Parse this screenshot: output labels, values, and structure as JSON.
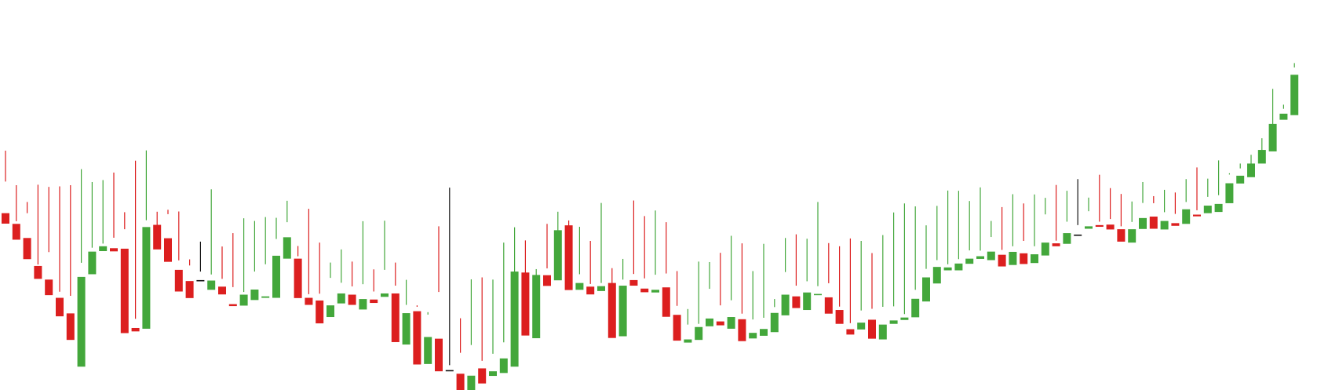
{
  "colors": {
    "up": "#43a73b",
    "down": "#dc1f1f",
    "doji": "#111111",
    "background": "#ffffff"
  },
  "chart_data": {
    "type": "candlestick",
    "title": "",
    "xlabel": "",
    "ylabel": "",
    "axes_visible": false,
    "grid": false,
    "y_range": [
      0,
      100
    ],
    "candles": [
      [
        -8.6,
        -12.9,
        13.0,
        -30.0
      ],
      [
        -13.0,
        -19.5,
        1.1,
        -22.4
      ],
      [
        -18.8,
        -27.5,
        10.2,
        -23.5
      ],
      [
        -30.3,
        -35.6,
        0.6,
        -38.7
      ],
      [
        -35.9,
        -42.3,
        11.3,
        -44.5
      ],
      [
        -43.4,
        -51.0,
        2.5,
        -53.4
      ],
      [
        -49.8,
        -60.7,
        7.2,
        -63.6
      ],
      [
        -71.7,
        -34.8,
        5.8,
        -81.2
      ],
      [
        -33.7,
        -24.4,
        1.6,
        -37.9
      ],
      [
        -24.2,
        -22.2,
        1.1,
        -29.2
      ],
      [
        -23.0,
        -24.3,
        4.3,
        -32.4
      ],
      [
        -23.2,
        -57.9,
        8.0,
        -49.7
      ],
      [
        -55.8,
        -57.2,
        3.8,
        -70.2
      ],
      [
        -56.1,
        -14.3,
        2.8,
        -73.3
      ],
      [
        -13.4,
        -23.5,
        5.4,
        -10.0
      ],
      [
        -18.9,
        -28.6,
        11.7,
        -19.6
      ],
      [
        -31.9,
        -40.8,
        3.9,
        -32.9
      ],
      [
        -36.5,
        -43.5,
        6.4,
        -15.9
      ],
      [
        -36.1,
        -36.5,
        3.5,
        -16.2
      ],
      [
        -40.1,
        -36.3,
        2.5,
        -41.3
      ],
      [
        -38.8,
        -42.0,
        3.2,
        -19.7
      ],
      [
        -46.0,
        -46.8,
        7.0,
        -30.0
      ],
      [
        -46.6,
        -42.1,
        1.1,
        -35.9
      ],
      [
        -44.3,
        -40.0,
        7.4,
        -32.5
      ],
      [
        -43.4,
        -42.8,
        13.2,
        -33.2
      ],
      [
        -43.4,
        -26.1,
        6.9,
        -32.9
      ],
      [
        -27.3,
        -18.5,
        6.2,
        -23.8
      ],
      [
        -27.3,
        -43.5,
        5.2,
        -17.2
      ],
      [
        -43.4,
        -46.3,
        1.5,
        -39.5
      ],
      [
        -44.5,
        -53.9,
        2.8,
        -33.2
      ],
      [
        -51.3,
        -46.5,
        11.3,
        -22.4
      ],
      [
        -45.7,
        -41.6,
        4.4,
        -22.2
      ],
      [
        -42.1,
        -46.3,
        3.4,
        -17.8
      ],
      [
        -48.2,
        -43.9,
        6.1,
        -36.3
      ],
      [
        -44.1,
        -45.5,
        3.3,
        -13.8
      ],
      [
        -43.0,
        -41.6,
        9.7,
        -31.3
      ],
      [
        -41.6,
        -61.6,
        12.7,
        -23.2
      ],
      [
        -62.6,
        -49.7,
        13.7,
        -16.3
      ],
      [
        -48.9,
        -70.8,
        2.4,
        -23.7
      ],
      [
        -70.6,
        -59.5,
        9.2,
        -21.3
      ],
      [
        -60.2,
        -73.6,
        19.2,
        -59.6
      ],
      [
        -73.1,
        -73.5,
        2.0,
        -75.4
      ],
      [
        -74.6,
        -82.5,
        8.6,
        -30.7
      ],
      [
        -83.2,
        -75.4,
        12.6,
        -47.4
      ],
      [
        -72.4,
        -78.6,
        3.1,
        -43.6
      ],
      [
        -75.5,
        -73.6,
        7.2,
        -39.6
      ],
      [
        -74.3,
        -68.3,
        6.6,
        -53.6
      ],
      [
        -71.7,
        -32.6,
        18.2,
        -11.6
      ],
      [
        -33.0,
        -58.9,
        13.2,
        -17.3
      ],
      [
        -60.0,
        -34.0,
        2.4,
        -15.6
      ],
      [
        -34.1,
        -38.5,
        2.8,
        -25.5
      ],
      [
        -36.2,
        -15.6,
        7.6,
        -10.0
      ],
      [
        -13.6,
        -40.2,
        2.0,
        -24.4
      ],
      [
        -40.1,
        -37.3,
        3.6,
        -25.9
      ],
      [
        -38.8,
        -42.0,
        1.1,
        -22.0
      ],
      [
        -40.6,
        -38.6,
        1.3,
        -36.2
      ],
      [
        -37.3,
        -59.9,
        6.1,
        -18.8
      ],
      [
        -59.2,
        -38.4,
        2.5,
        -31.8
      ],
      [
        -36.1,
        -38.4,
        2.5,
        -35.0
      ],
      [
        -39.6,
        -41.1,
        4.2,
        -31.3
      ],
      [
        -41.2,
        -40.1,
        6.2,
        -33.7
      ],
      [
        -39.1,
        -51.2,
        5.7,
        -38.9
      ],
      [
        -50.4,
        -61.0,
        3.7,
        -28.6
      ],
      [
        -61.8,
        -60.5,
        6.1,
        -13.8
      ],
      [
        -60.7,
        -55.4,
        1.3,
        -32.2
      ],
      [
        -55.1,
        -51.9,
        12.2,
        -26.4
      ],
      [
        -53.1,
        -54.7,
        6.6,
        -29.8
      ],
      [
        -56.1,
        -51.3,
        6.9,
        -38.2
      ],
      [
        -52.2,
        -61.2,
        2.3,
        -40.2
      ],
      [
        -60.1,
        -57.8,
        5.5,
        -27.7
      ],
      [
        -59.0,
        -56.2,
        4.6,
        -37.8
      ],
      [
        -57.5,
        -49.6,
        5.7,
        -10.3
      ],
      [
        -50.6,
        -42.1,
        9.3,
        -31.8
      ],
      [
        -42.8,
        -47.6,
        4.4,
        -30.3
      ],
      [
        -48.4,
        -41.2,
        4.6,
        -29.3
      ],
      [
        -42.3,
        -41.8,
        3.2,
        -38.3
      ],
      [
        -43.2,
        -49.9,
        5.8,
        -29.0
      ],
      [
        -48.4,
        -54.1,
        1.4,
        -31.9
      ],
      [
        -56.3,
        -58.5,
        2.5,
        -39.5
      ],
      [
        -56.4,
        -53.6,
        5.0,
        -36.4
      ],
      [
        -52.4,
        -60.2,
        4.5,
        -35.2
      ],
      [
        -60.5,
        -54.4,
        7.3,
        -42.9
      ],
      [
        -54.1,
        -52.7,
        5.8,
        -45.8
      ],
      [
        -52.5,
        -51.5,
        1.4,
        -47.9
      ],
      [
        -51.4,
        -43.8,
        3.7,
        -45.6
      ],
      [
        -44.9,
        -35.0,
        3.5,
        -31.3
      ],
      [
        -37.5,
        -30.7,
        2.8,
        -31.9
      ],
      [
        -32.1,
        -30.9,
        1.3,
        -32.8
      ],
      [
        -32.1,
        -29.3,
        1.8,
        -32.7
      ],
      [
        -29.4,
        -27.3,
        3.4,
        -25.8
      ],
      [
        -27.4,
        -26.3,
        2.3,
        -29.4
      ],
      [
        -27.9,
        -24.4,
        6.0,
        -16.1
      ],
      [
        -25.7,
        -30.5,
        2.0,
        -24.4
      ],
      [
        -29.9,
        -24.5,
        2.3,
        -29.1
      ],
      [
        -25.1,
        -29.5,
        5.1,
        -24.9
      ],
      [
        -29.1,
        -25.5,
        3.3,
        -28.2
      ],
      [
        -26.0,
        -20.7,
        11.6,
        -23.7
      ],
      [
        -21.0,
        -22.2,
        1.1,
        -25.2
      ],
      [
        -21.2,
        -16.8,
        4.7,
        -21.8
      ],
      [
        -17.7,
        -17.4,
        3.9,
        -23.1
      ],
      [
        -15.0,
        -14.0,
        6.2,
        -12.8
      ],
      [
        -13.5,
        -14.2,
        1.4,
        -21.4
      ],
      [
        -13.3,
        -15.3,
        2.3,
        -17.0
      ],
      [
        -15.2,
        -20.3,
        1.2,
        -19.6
      ],
      [
        -20.7,
        -15.2,
        3.0,
        -16.9
      ],
      [
        -15.1,
        -10.6,
        6.2,
        -19.3
      ],
      [
        -10.0,
        -15.0,
        5.5,
        -13.4
      ],
      [
        -15.3,
        -11.8,
        3.6,
        -16.3
      ],
      [
        -12.7,
        -13.8,
        3.8,
        -13.7
      ],
      [
        -13.0,
        -7.0,
        3.0,
        -18.4
      ],
      [
        -9.2,
        -9.9,
        1.8,
        -20.1
      ],
      [
        -8.6,
        -5.5,
        3.6,
        -14.2
      ],
      [
        -8.1,
        -4.8,
        3.6,
        -21.2
      ],
      [
        -4.5,
        3.7,
        3.6,
        -12.3
      ],
      [
        3.6,
        6.8,
        3.0,
        -8.2
      ],
      [
        6.2,
        11.8,
        3.6,
        -5.0
      ],
      [
        11.8,
        17.4,
        4.8,
        -3.6
      ],
      [
        16.8,
        28.1,
        14.4,
        -5.0
      ],
      [
        29.8,
        32.3,
        3.7,
        -4.5
      ],
      [
        31.7,
        48.3,
        4.8,
        -19.6
      ]
    ],
    "candle_field_order": [
      "open",
      "close",
      "wick_above",
      "wick_below"
    ]
  }
}
